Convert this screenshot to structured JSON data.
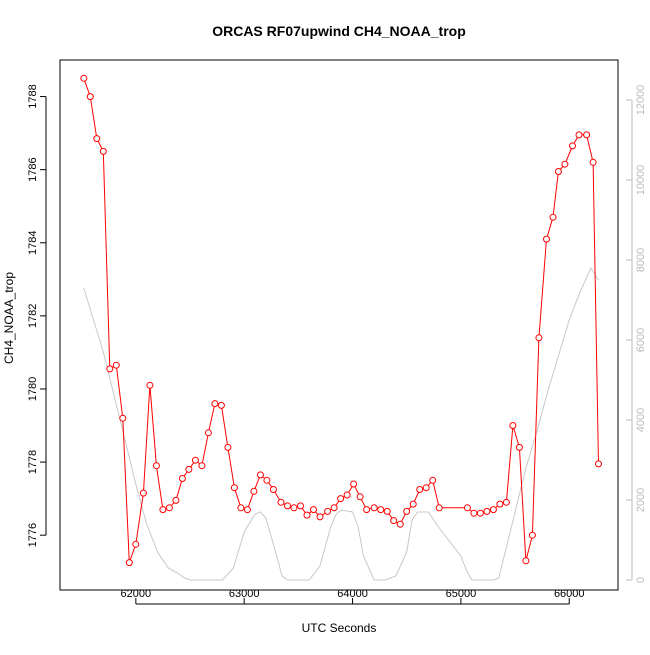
{
  "chart_data": {
    "type": "line",
    "title": "ORCAS RF07upwind CH4_NOAA_trop",
    "xlabel": "UTC Seconds",
    "ylabel": "CH4_NOAA_trop",
    "y2label": "",
    "xlim": [
      61300,
      66450
    ],
    "ylim": [
      1774.5,
      1789.0
    ],
    "y2lim": [
      -250,
      13000
    ],
    "x_ticks": [
      62000,
      63000,
      64000,
      65000,
      66000
    ],
    "y_ticks": [
      1776,
      1778,
      1780,
      1782,
      1784,
      1786,
      1788
    ],
    "y2_ticks": [
      0,
      2000,
      4000,
      6000,
      8000,
      10000,
      12000
    ],
    "grid": false,
    "colors": {
      "ch4": "#ff0000",
      "altitude": "#c8c8c8",
      "axis": "#000000",
      "axis2": "#bbbbbb"
    },
    "series": [
      {
        "axis": "left",
        "style": "line+points",
        "x": [
          61520,
          61580,
          61640,
          61700,
          61760,
          61820,
          61880,
          61940,
          62000,
          62070,
          62130,
          62190,
          62250,
          62310,
          62370,
          62430,
          62490,
          62550,
          62610,
          62670,
          62730,
          62790,
          62850,
          62910,
          62970,
          63030,
          63090,
          63150,
          63210,
          63270,
          63340,
          63400,
          63460,
          63520,
          63580,
          63640,
          63700,
          63770,
          63830,
          63890,
          63950,
          64010,
          64070,
          64130,
          64200,
          64260,
          64320,
          64380,
          64440,
          64500,
          64560,
          64620,
          64680,
          64740,
          64800,
          65060,
          65120,
          65180,
          65240,
          65300,
          65360,
          65420,
          65480,
          65540,
          65600,
          65660,
          65720,
          65790,
          65850,
          65900,
          65960,
          66030,
          66090,
          66160,
          66220,
          66270
        ],
        "y": [
          1788.5,
          1788.0,
          1786.85,
          1786.5,
          1780.55,
          1780.65,
          1779.2,
          1775.25,
          1775.75,
          1777.15,
          1780.1,
          1777.9,
          1776.7,
          1776.75,
          1776.95,
          1777.55,
          1777.8,
          1778.05,
          1777.9,
          1778.8,
          1779.6,
          1779.55,
          1778.4,
          1777.3,
          1776.75,
          1776.7,
          1777.2,
          1777.65,
          1777.5,
          1777.25,
          1776.9,
          1776.8,
          1776.75,
          1776.8,
          1776.55,
          1776.7,
          1776.5,
          1776.65,
          1776.75,
          1777.0,
          1777.1,
          1777.4,
          1777.05,
          1776.7,
          1776.75,
          1776.7,
          1776.65,
          1776.4,
          1776.3,
          1776.65,
          1776.85,
          1777.25,
          1777.3,
          1777.5,
          1776.75,
          1776.75,
          1776.6,
          1776.6,
          1776.65,
          1776.7,
          1776.85,
          1776.9,
          1779.0,
          1778.4,
          1775.3,
          1776.0,
          1781.4,
          1784.1,
          1784.7,
          1785.95,
          1786.15,
          1786.65,
          1786.95,
          1786.95,
          1786.2,
          1777.95
        ]
      },
      {
        "axis": "right",
        "style": "line",
        "x": [
          61520,
          61700,
          61800,
          61900,
          62000,
          62100,
          62200,
          62300,
          62400,
          62450,
          62500,
          62600,
          62700,
          62800,
          62900,
          63000,
          63100,
          63150,
          63200,
          63300,
          63350,
          63400,
          63500,
          63600,
          63700,
          63800,
          63850,
          63900,
          64000,
          64050,
          64100,
          64200,
          64300,
          64400,
          64500,
          64550,
          64600,
          64700,
          64800,
          64900,
          65000,
          65050,
          65100,
          65200,
          65300,
          65350,
          65400,
          65500,
          65600,
          65700,
          65800,
          65900,
          66000,
          66100,
          66200,
          66270
        ],
        "y": [
          7300,
          5700,
          4600,
          3500,
          2400,
          1400,
          700,
          300,
          150,
          50,
          0,
          0,
          0,
          0,
          300,
          1200,
          1650,
          1700,
          1550,
          600,
          100,
          0,
          0,
          0,
          350,
          1350,
          1650,
          1750,
          1700,
          1350,
          600,
          0,
          0,
          100,
          700,
          1500,
          1700,
          1700,
          1300,
          950,
          600,
          250,
          0,
          0,
          0,
          50,
          600,
          1700,
          2800,
          3700,
          4700,
          5600,
          6500,
          7200,
          7800,
          7500
        ]
      }
    ]
  }
}
